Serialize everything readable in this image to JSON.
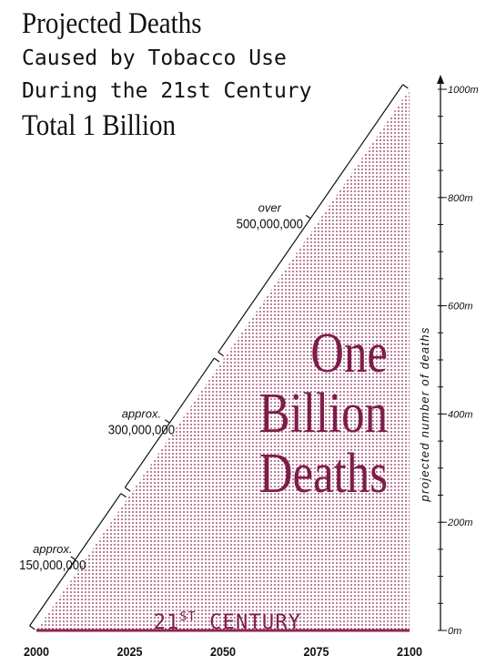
{
  "title": {
    "line1": "Projected Deaths",
    "line2": "Caused by Tobacco Use",
    "line3": "During the 21st Century",
    "line4": "Total 1 Billion"
  },
  "chart_data": {
    "type": "area",
    "title": "Projected Deaths Caused by Tobacco Use During the 21st Century — Total 1 Billion",
    "x": [
      2000,
      2100
    ],
    "y": [
      0,
      1000
    ],
    "xlim": [
      2000,
      2100
    ],
    "ylim": [
      0,
      1000
    ],
    "x_ticks": [
      2000,
      2025,
      2050,
      2075,
      2100
    ],
    "x_tick_labels": [
      "2000",
      "2025",
      "2050",
      "2075",
      "2100"
    ],
    "y_ticks": [
      0,
      200,
      400,
      600,
      800,
      1000
    ],
    "y_tick_labels": [
      "0m",
      "200m",
      "400m",
      "600m",
      "800m",
      "1000m"
    ],
    "ylabel": "projected number of deaths",
    "xlabel": "",
    "area_label": [
      "One",
      "Billion",
      "Deaths"
    ],
    "century_label": {
      "prefix": "21",
      "sup": "ST",
      "suffix": " CENTURY"
    },
    "segments": [
      {
        "x_start": 2000,
        "x_end": 2025,
        "qualifier": "approx.",
        "value": "150,000,000"
      },
      {
        "x_start": 2025,
        "x_end": 2050,
        "qualifier": "approx.",
        "value": "300,000,000"
      },
      {
        "x_start": 2050,
        "x_end": 2100,
        "qualifier": "over",
        "value": "500,000,000"
      }
    ]
  },
  "colors": {
    "fill_dots": "#8c2752",
    "label_text": "#7d1d49",
    "baseline": "#8c2752",
    "ink": "#111111"
  }
}
